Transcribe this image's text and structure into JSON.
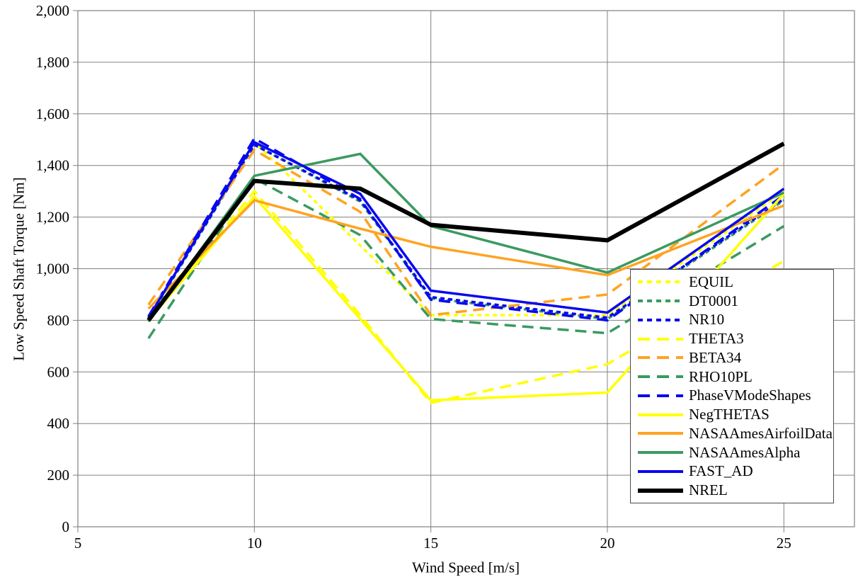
{
  "chart_data": {
    "type": "line",
    "title": "",
    "xlabel": "Wind Speed [m/s]",
    "ylabel": "Low Speed Shaft Torque [Nm]",
    "xlim": [
      5,
      27
    ],
    "ylim": [
      0,
      2000
    ],
    "grid": true,
    "legend_position": "inside-right",
    "x_ticks": [
      5,
      10,
      15,
      20,
      25
    ],
    "x_tick_labels": [
      "5",
      "10",
      "15",
      "20",
      "25"
    ],
    "y_ticks": [
      0,
      200,
      400,
      600,
      800,
      1000,
      1200,
      1400,
      1600,
      1800,
      2000
    ],
    "y_tick_labels": [
      "0",
      "200",
      "400",
      "600",
      "800",
      "1,000",
      "1,200",
      "1,400",
      "1,600",
      "1,800",
      "2,000"
    ],
    "x": [
      7,
      10,
      13,
      15,
      20,
      25
    ],
    "series": [
      {
        "name": "EQUIL",
        "color": "#FFFF00",
        "style": "dash-short",
        "width": 3.5,
        "values": [
          810,
          1490,
          1090,
          820,
          820,
          1300
        ]
      },
      {
        "name": "DT0001",
        "color": "#3A9A60",
        "style": "dash-short",
        "width": 3.5,
        "values": [
          805,
          1480,
          1260,
          885,
          805,
          1265
        ]
      },
      {
        "name": "NR10",
        "color": "#0808F0",
        "style": "dash-short",
        "width": 3.5,
        "values": [
          810,
          1480,
          1265,
          890,
          810,
          1270
        ]
      },
      {
        "name": "THETA3",
        "color": "#FFFF00",
        "style": "dash-long",
        "width": 3.5,
        "values": [
          800,
          1300,
          820,
          480,
          630,
          1030
        ]
      },
      {
        "name": "BETA34",
        "color": "#FFA321",
        "style": "dash-long",
        "width": 3.5,
        "values": [
          860,
          1460,
          1220,
          820,
          900,
          1405
        ]
      },
      {
        "name": "RHO10PL",
        "color": "#3A9A60",
        "style": "dash-long",
        "width": 3.5,
        "values": [
          730,
          1350,
          1130,
          805,
          750,
          1165
        ]
      },
      {
        "name": "PhaseVModeShapes",
        "color": "#0808F0",
        "style": "dash-long",
        "width": 3.5,
        "values": [
          815,
          1505,
          1270,
          880,
          800,
          1285
        ]
      },
      {
        "name": "NegTHETAS",
        "color": "#FFFF00",
        "style": "solid",
        "width": 3.5,
        "values": [
          800,
          1280,
          805,
          490,
          520,
          1290
        ]
      },
      {
        "name": "NASAAmesAirfoilData",
        "color": "#FFA321",
        "style": "solid",
        "width": 3.5,
        "values": [
          845,
          1265,
          1155,
          1085,
          975,
          1245
        ]
      },
      {
        "name": "NASAAmesAlpha",
        "color": "#3A9A60",
        "style": "solid",
        "width": 3.5,
        "values": [
          795,
          1360,
          1445,
          1165,
          985,
          1295
        ]
      },
      {
        "name": "FAST_AD",
        "color": "#0808F0",
        "style": "solid",
        "width": 3.5,
        "values": [
          810,
          1490,
          1290,
          915,
          830,
          1310
        ]
      },
      {
        "name": "NREL",
        "color": "#000000",
        "style": "solid",
        "width": 6,
        "values": [
          800,
          1340,
          1310,
          1170,
          1110,
          1485
        ]
      }
    ],
    "grid_color": "#808080"
  }
}
